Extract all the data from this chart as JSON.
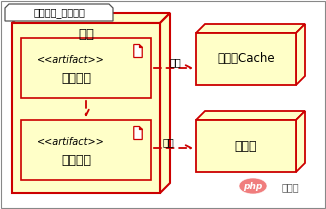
{
  "bg_color": "#ffffff",
  "border_color": "#cc0000",
  "fill_yellow": "#ffffc8",
  "title_tab": "电商案例_缓存设计",
  "outer_box_label": "应用",
  "inner_box1_label1": "<<artifact>>",
  "inner_box1_label2": "应用程序",
  "inner_box2_label1": "<<artifact>>",
  "inner_box2_label2": "本地缓存",
  "cache_box_label": "分布式Cache",
  "db_box_label": "数据库",
  "arrow1_label": "访问",
  "arrow2_label": "读取",
  "watermark_php": "php",
  "watermark_cn": "中文网"
}
